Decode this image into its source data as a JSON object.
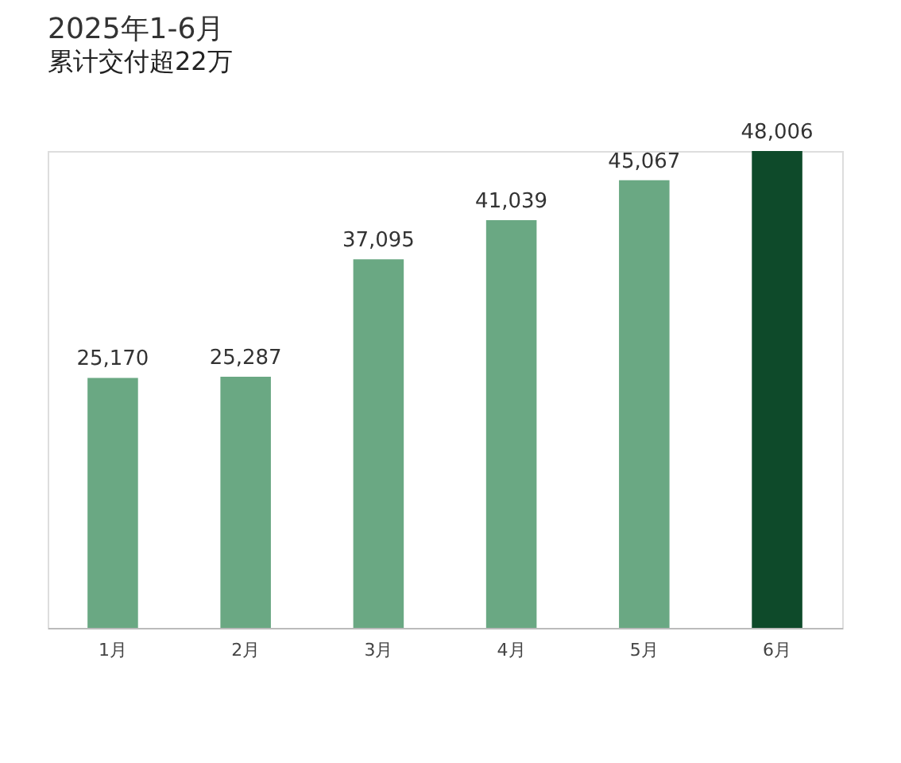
{
  "chart_data": {
    "type": "bar",
    "title": "2025年1-6月",
    "subtitle": "累计交付超22万",
    "categories": [
      "1月",
      "2月",
      "3月",
      "4月",
      "5月",
      "6月"
    ],
    "values": [
      25170,
      25287,
      37095,
      41039,
      45067,
      48006
    ],
    "colors": [
      "#6aa883",
      "#6aa883",
      "#6aa883",
      "#6aa883",
      "#6aa883",
      "#0e4a2a"
    ],
    "value_labels": [
      "25,170",
      "25,287",
      "37,095",
      "41,039",
      "45,067",
      "48,006"
    ],
    "grid": false,
    "tick_labels": "x"
  }
}
